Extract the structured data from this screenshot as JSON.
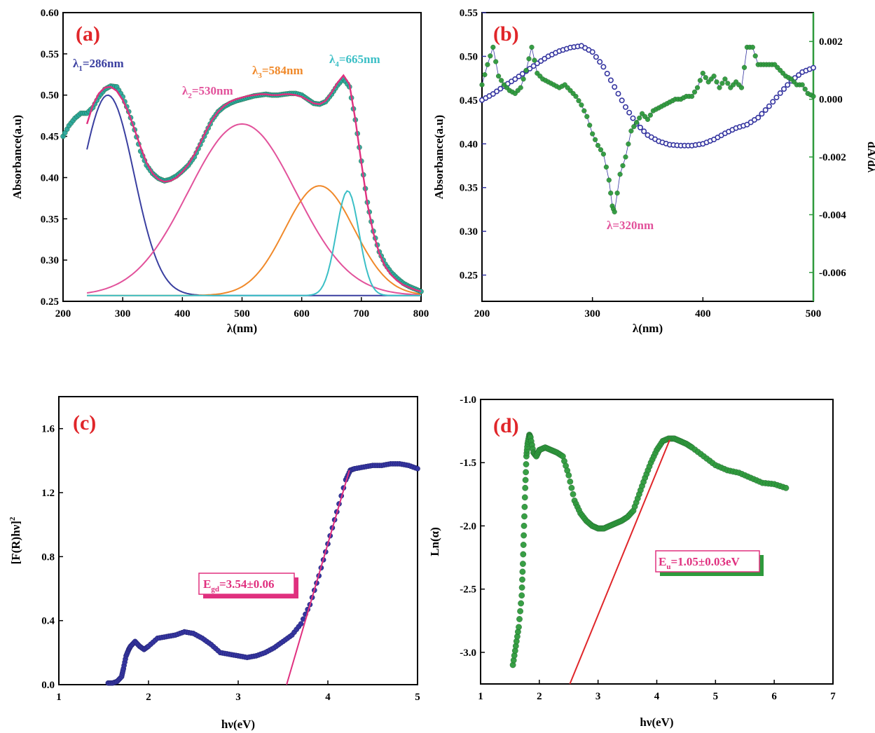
{
  "chart_data": [
    {
      "panel": "(a)",
      "type": "line",
      "xlabel": "λ(nm)",
      "ylabel": "Absorbance(a.u)",
      "xlim": [
        200,
        800
      ],
      "ylim": [
        0.25,
        0.6
      ],
      "xticks": [
        "200",
        "300",
        "400",
        "500",
        "600",
        "700",
        "800"
      ],
      "yticks": [
        "0.25",
        "0.30",
        "0.35",
        "0.40",
        "0.45",
        "0.50",
        "0.55",
        "0.60"
      ],
      "annotations": [
        {
          "main": "λ",
          "sub": "1",
          "rest": "=286nm",
          "color": "#3a3fa0"
        },
        {
          "main": "λ",
          "sub": "2",
          "rest": "=530nm",
          "color": "#e2529b"
        },
        {
          "main": "λ",
          "sub": "3",
          "rest": "=584nm",
          "color": "#f0892a"
        },
        {
          "main": "λ",
          "sub": "4",
          "rest": "=665nm",
          "color": "#3bbfc6"
        }
      ],
      "measured": {
        "x": [
          200,
          210,
          220,
          230,
          240,
          250,
          260,
          270,
          280,
          290,
          300,
          310,
          320,
          330,
          340,
          350,
          360,
          370,
          380,
          390,
          400,
          410,
          420,
          430,
          440,
          450,
          460,
          470,
          480,
          490,
          500,
          510,
          520,
          530,
          540,
          550,
          560,
          570,
          580,
          590,
          600,
          610,
          620,
          630,
          640,
          650,
          660,
          670,
          680,
          690,
          700,
          710,
          720,
          730,
          740,
          750,
          760,
          770,
          780,
          790,
          800
        ],
        "y": [
          0.45,
          0.463,
          0.472,
          0.478,
          0.478,
          0.485,
          0.498,
          0.507,
          0.511,
          0.51,
          0.498,
          0.48,
          0.458,
          0.432,
          0.415,
          0.405,
          0.399,
          0.396,
          0.398,
          0.402,
          0.408,
          0.415,
          0.425,
          0.44,
          0.455,
          0.47,
          0.48,
          0.486,
          0.49,
          0.493,
          0.495,
          0.497,
          0.499,
          0.5,
          0.501,
          0.5,
          0.5,
          0.501,
          0.502,
          0.502,
          0.5,
          0.495,
          0.49,
          0.489,
          0.492,
          0.501,
          0.512,
          0.52,
          0.51,
          0.47,
          0.42,
          0.37,
          0.335,
          0.31,
          0.295,
          0.285,
          0.278,
          0.272,
          0.268,
          0.265,
          0.262
        ],
        "color": "#2aa79b"
      },
      "fit": {
        "x": [
          240,
          250,
          260,
          270,
          280,
          290,
          300,
          310,
          320,
          330,
          340,
          350,
          360,
          370,
          380,
          390,
          400,
          410,
          420,
          430,
          440,
          450,
          460,
          470,
          480,
          490,
          500,
          510,
          520,
          530,
          540,
          550,
          560,
          570,
          580,
          590,
          600,
          610,
          620,
          630,
          640,
          650,
          660,
          670,
          680,
          690,
          700,
          710,
          720,
          730,
          740,
          750,
          760,
          770,
          780,
          790,
          800
        ],
        "y": [
          0.465,
          0.488,
          0.502,
          0.509,
          0.51,
          0.505,
          0.494,
          0.478,
          0.458,
          0.437,
          0.418,
          0.405,
          0.398,
          0.395,
          0.396,
          0.4,
          0.407,
          0.416,
          0.428,
          0.442,
          0.457,
          0.47,
          0.48,
          0.487,
          0.492,
          0.495,
          0.497,
          0.499,
          0.5,
          0.501,
          0.501,
          0.5,
          0.5,
          0.501,
          0.501,
          0.5,
          0.498,
          0.494,
          0.49,
          0.489,
          0.493,
          0.503,
          0.515,
          0.524,
          0.513,
          0.47,
          0.418,
          0.368,
          0.333,
          0.308,
          0.292,
          0.282,
          0.275,
          0.27,
          0.267,
          0.264,
          0.262
        ],
        "color": "#e0307f"
      },
      "gaussians": [
        {
          "center": 275,
          "amp": 0.243,
          "sigma": 44,
          "color": "#3a3fa0"
        },
        {
          "center": 500,
          "amp": 0.208,
          "sigma": 90,
          "color": "#e2529b"
        },
        {
          "center": 630,
          "amp": 0.133,
          "sigma": 58,
          "color": "#f0892a"
        },
        {
          "center": 677,
          "amp": 0.127,
          "sigma": 19,
          "color": "#3bbfc6"
        }
      ],
      "gauss_baseline": 0.257,
      "gauss_xrange": [
        240,
        800
      ]
    },
    {
      "panel": "(b)",
      "type": "scatter",
      "xlabel": "λ(nm)",
      "ylabel": "Absorbance(a.u)",
      "y2label": "dA/dλ",
      "xlim": [
        200,
        500
      ],
      "ylim": [
        0.22,
        0.55
      ],
      "y2lim": [
        -0.007,
        0.003
      ],
      "xticks": [
        "200",
        "300",
        "400",
        "500"
      ],
      "yticks": [
        "0.25",
        "0.30",
        "0.35",
        "0.40",
        "0.45",
        "0.50",
        "0.55"
      ],
      "y2ticks": [
        "-0.006",
        "-0.004",
        "-0.002",
        "0.000",
        "0.002"
      ],
      "annotation": {
        "text": "λ=320nm",
        "color": "#e2529b"
      },
      "absorbance": {
        "x": [
          200,
          210,
          220,
          230,
          240,
          250,
          260,
          270,
          280,
          290,
          300,
          310,
          320,
          330,
          340,
          350,
          360,
          370,
          380,
          390,
          400,
          410,
          420,
          430,
          440,
          450,
          460,
          470,
          480,
          490,
          500
        ],
        "y": [
          0.45,
          0.457,
          0.466,
          0.474,
          0.483,
          0.492,
          0.5,
          0.506,
          0.51,
          0.512,
          0.505,
          0.488,
          0.465,
          0.442,
          0.423,
          0.41,
          0.403,
          0.399,
          0.398,
          0.398,
          0.4,
          0.405,
          0.412,
          0.418,
          0.422,
          0.43,
          0.443,
          0.458,
          0.472,
          0.482,
          0.487
        ],
        "color": "#3535a0"
      },
      "derivative": {
        "x": [
          200,
          205,
          210,
          215,
          220,
          225,
          230,
          235,
          240,
          245,
          250,
          255,
          260,
          265,
          270,
          275,
          280,
          285,
          290,
          295,
          300,
          305,
          310,
          315,
          318,
          320,
          325,
          330,
          335,
          340,
          345,
          350,
          355,
          360,
          365,
          370,
          375,
          380,
          385,
          390,
          395,
          400,
          405,
          410,
          415,
          420,
          425,
          430,
          435,
          440,
          445,
          450,
          455,
          460,
          465,
          470,
          475,
          480,
          485,
          490,
          495,
          500
        ],
        "y": [
          0.0005,
          0.0012,
          0.0018,
          0.0008,
          0.0005,
          0.0003,
          0.0002,
          0.0004,
          0.001,
          0.0018,
          0.0009,
          0.0007,
          0.0006,
          0.0005,
          0.0004,
          0.0005,
          0.0003,
          0.0001,
          -0.0002,
          -0.0006,
          -0.0012,
          -0.0016,
          -0.0019,
          -0.0028,
          -0.0037,
          -0.0039,
          -0.0026,
          -0.002,
          -0.0011,
          -0.0008,
          -0.0005,
          -0.0007,
          -0.0004,
          -0.0003,
          -0.0002,
          -0.0001,
          0.0,
          0.0,
          0.0001,
          0.0001,
          0.0004,
          0.0009,
          0.0006,
          0.0008,
          0.0004,
          0.0007,
          0.0004,
          0.0006,
          0.0004,
          0.0018,
          0.0018,
          0.0012,
          0.0012,
          0.0012,
          0.0012,
          0.001,
          0.0008,
          0.0007,
          0.0005,
          0.0005,
          0.0002,
          0.0001
        ],
        "color": "#2e9a3c"
      }
    },
    {
      "panel": "(c)",
      "type": "scatter",
      "xlabel": "hν(eV)",
      "ylabel": "[F(R)hν]",
      "ylabel_sup": "2",
      "xlim": [
        1,
        5
      ],
      "ylim": [
        0.0,
        1.8
      ],
      "xticks": [
        "1",
        "2",
        "3",
        "4",
        "5"
      ],
      "yticks": [
        "0.0",
        "0.4",
        "0.8",
        "1.2",
        "1.6"
      ],
      "annotation": {
        "main": "E",
        "sub": "gd",
        "rest": "=3.54±0.06",
        "color": "#e0307f"
      },
      "data": {
        "x": [
          1.55,
          1.6,
          1.65,
          1.7,
          1.72,
          1.75,
          1.78,
          1.8,
          1.85,
          1.9,
          1.95,
          2.0,
          2.1,
          2.2,
          2.3,
          2.4,
          2.5,
          2.6,
          2.7,
          2.8,
          2.9,
          3.0,
          3.1,
          3.2,
          3.3,
          3.4,
          3.5,
          3.6,
          3.7,
          3.8,
          3.9,
          4.0,
          4.1,
          4.2,
          4.25,
          4.3,
          4.4,
          4.5,
          4.6,
          4.7,
          4.8,
          4.9,
          5.0
        ],
        "y": [
          0.01,
          0.01,
          0.02,
          0.05,
          0.1,
          0.18,
          0.22,
          0.24,
          0.27,
          0.24,
          0.22,
          0.24,
          0.29,
          0.3,
          0.31,
          0.33,
          0.32,
          0.29,
          0.25,
          0.2,
          0.19,
          0.18,
          0.17,
          0.18,
          0.2,
          0.23,
          0.27,
          0.31,
          0.38,
          0.5,
          0.68,
          0.88,
          1.08,
          1.28,
          1.34,
          1.35,
          1.36,
          1.37,
          1.37,
          1.38,
          1.38,
          1.37,
          1.35
        ],
        "color": "#3535a0"
      },
      "fit_line": {
        "x": [
          3.54,
          4.24
        ],
        "y": [
          0.0,
          1.34
        ],
        "color": "#e0307f"
      }
    },
    {
      "panel": "(d)",
      "type": "scatter",
      "xlabel": "hν(eV)",
      "ylabel": "Ln(α)",
      "xlim": [
        1,
        7
      ],
      "ylim": [
        -3.25,
        -1.0
      ],
      "xticks": [
        "1",
        "2",
        "3",
        "4",
        "5",
        "6",
        "7"
      ],
      "yticks": [
        "-1.0",
        "-1.5",
        "-2.0",
        "-2.5",
        "-3.0"
      ],
      "annotation": {
        "main": "E",
        "sub": "u",
        "rest": "=1.05±0.03eV",
        "color": "#e0307f"
      },
      "data": {
        "x": [
          1.55,
          1.6,
          1.65,
          1.7,
          1.72,
          1.74,
          1.76,
          1.78,
          1.8,
          1.83,
          1.85,
          1.9,
          1.95,
          2.0,
          2.1,
          2.2,
          2.3,
          2.4,
          2.5,
          2.6,
          2.7,
          2.8,
          2.9,
          3.0,
          3.1,
          3.2,
          3.3,
          3.4,
          3.5,
          3.6,
          3.7,
          3.8,
          3.9,
          4.0,
          4.1,
          4.2,
          4.3,
          4.4,
          4.5,
          4.6,
          4.8,
          5.0,
          5.2,
          5.4,
          5.6,
          5.8,
          6.0,
          6.2
        ],
        "y": [
          -3.1,
          -2.95,
          -2.8,
          -2.55,
          -2.3,
          -2.0,
          -1.7,
          -1.45,
          -1.35,
          -1.28,
          -1.3,
          -1.42,
          -1.45,
          -1.4,
          -1.38,
          -1.4,
          -1.42,
          -1.45,
          -1.6,
          -1.8,
          -1.9,
          -1.96,
          -2.0,
          -2.02,
          -2.02,
          -2.0,
          -1.98,
          -1.96,
          -1.93,
          -1.88,
          -1.75,
          -1.62,
          -1.5,
          -1.4,
          -1.33,
          -1.31,
          -1.31,
          -1.33,
          -1.35,
          -1.38,
          -1.45,
          -1.52,
          -1.56,
          -1.58,
          -1.62,
          -1.66,
          -1.67,
          -1.7
        ],
        "color": "#2e9a3c"
      },
      "fit_line": {
        "x": [
          2.52,
          4.22
        ],
        "y": [
          -3.25,
          -1.32
        ],
        "color": "#e0262a"
      }
    }
  ]
}
